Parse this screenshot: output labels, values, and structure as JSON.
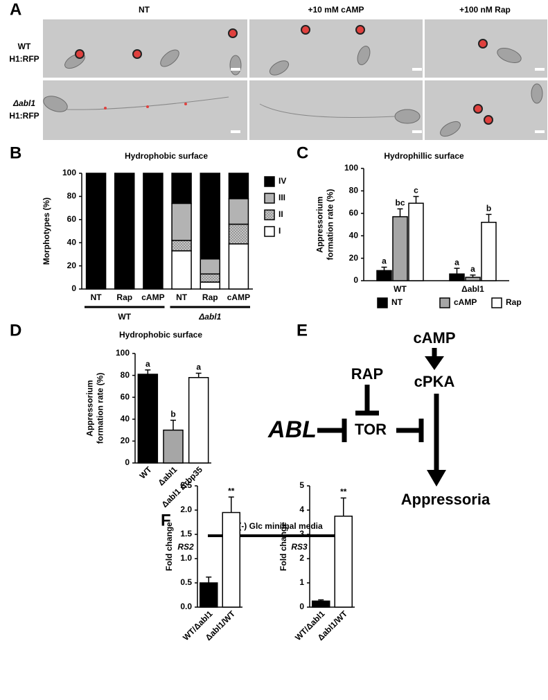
{
  "panel_labels": [
    "A",
    "B",
    "C",
    "D",
    "E",
    "F"
  ],
  "panel_a": {
    "columns": [
      "NT",
      "+10 mM cAMP",
      "+100 nM Rap"
    ],
    "rows": [
      [
        "WT",
        "H1:RFP"
      ],
      [
        "Δabl1",
        "H1:RFP"
      ]
    ]
  },
  "chart_data": [
    {
      "type": "bar",
      "stacked": true,
      "title": "Hydrophobic surface",
      "y_label": [
        "Morphotypes (%)"
      ],
      "categories": [
        "NT",
        "Rap",
        "cAMP",
        "NT",
        "Rap",
        "cAMP"
      ],
      "groups": [
        "WT",
        "Δabl1"
      ],
      "series": [
        {
          "name": "I",
          "color": "#ffffff",
          "values": [
            0,
            0,
            0,
            33,
            6,
            39
          ]
        },
        {
          "name": "II",
          "color": "#8c8c8c",
          "hatched": true,
          "values": [
            0,
            0,
            0,
            9,
            7,
            17
          ]
        },
        {
          "name": "III",
          "color": "#b3b3b3",
          "values": [
            0,
            0,
            0,
            32,
            13,
            22
          ]
        },
        {
          "name": "IV",
          "color": "#000000",
          "values": [
            100,
            100,
            100,
            26,
            74,
            22
          ]
        }
      ],
      "ylim": [
        0,
        100
      ],
      "yticks": [
        0,
        20,
        40,
        60,
        80,
        100
      ],
      "legend": "right"
    },
    {
      "type": "bar",
      "title": "Hydrophillic surface",
      "y_label": [
        "Appressorium",
        "formation rate (%)"
      ],
      "categories": [
        "WT",
        "Δabl1"
      ],
      "series": [
        {
          "name": "NT",
          "color": "#000000",
          "values": [
            9,
            6
          ],
          "errors": [
            3,
            5
          ],
          "letters": [
            "a",
            "a"
          ]
        },
        {
          "name": "cAMP",
          "color": "#a6a6a6",
          "values": [
            57,
            3
          ],
          "errors": [
            7,
            2
          ],
          "letters": [
            "bc",
            "a"
          ]
        },
        {
          "name": "Rap",
          "color": "#ffffff",
          "values": [
            69,
            52
          ],
          "errors": [
            6,
            7
          ],
          "letters": [
            "c",
            "b"
          ]
        }
      ],
      "ylim": [
        0,
        100
      ],
      "yticks": [
        0,
        20,
        40,
        60,
        80,
        100
      ],
      "legend": "bottom"
    },
    {
      "type": "bar",
      "title": "Hydrophobic surface",
      "y_label": [
        "Appressorium",
        "formation rate (%)"
      ],
      "categories": [
        "WT",
        "Δabl1",
        "Δabl1 Δrbp35"
      ],
      "colors": [
        "#000000",
        "#a6a6a6",
        "#ffffff"
      ],
      "values": [
        81,
        30,
        78
      ],
      "errors": [
        4,
        9,
        4
      ],
      "letters": [
        "a",
        "b",
        "a"
      ],
      "ylim": [
        0,
        100
      ],
      "yticks": [
        0,
        20,
        40,
        60,
        80,
        100
      ]
    },
    {
      "type": "bar",
      "title": "RS2",
      "y_label": [
        "Fold change"
      ],
      "categories": [
        "WT/Δabl1",
        "Δabl1/WT"
      ],
      "colors": [
        "#000000",
        "#ffffff"
      ],
      "values": [
        0.5,
        1.95
      ],
      "errors": [
        0.12,
        0.32
      ],
      "letters": [
        null,
        "**"
      ],
      "ylim": [
        0,
        2.5
      ],
      "yticks": [
        {
          "value": 0,
          "label": "0.0"
        },
        0.5,
        {
          "value": 1,
          "label": "1.0"
        },
        1.5,
        {
          "value": 2,
          "label": "2.0"
        },
        2.5
      ]
    },
    {
      "type": "bar",
      "title": "RS3",
      "y_label": [
        "Fold change"
      ],
      "categories": [
        "WT/Δabl1",
        "Δabl1/WT"
      ],
      "colors": [
        "#000000",
        "#ffffff"
      ],
      "values": [
        0.25,
        3.75
      ],
      "errors": [
        0.05,
        0.75
      ],
      "letters": [
        null,
        "**"
      ],
      "ylim": [
        0,
        5
      ],
      "yticks": [
        0,
        1,
        2,
        3,
        4,
        5
      ]
    }
  ],
  "panel_f": {
    "header": "(-) Glc minimal media"
  },
  "diagram": {
    "nodes": [
      "cAMP",
      "cPKA",
      "RAP",
      "TOR",
      "ABL",
      "Appressoria"
    ]
  }
}
